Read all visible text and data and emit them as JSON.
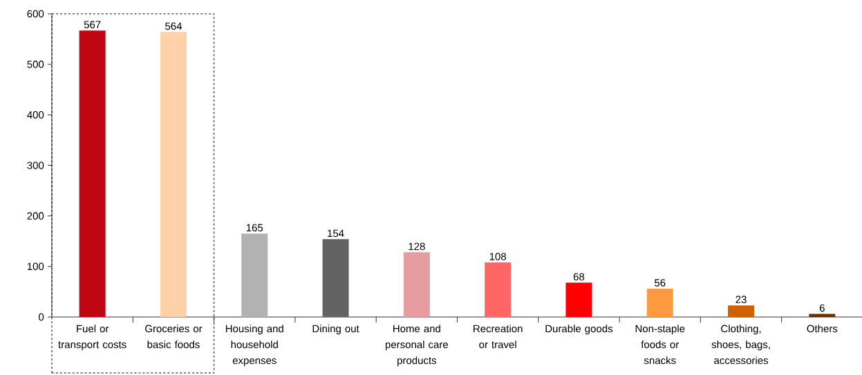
{
  "chart_data": {
    "type": "bar",
    "categories": [
      "Fuel or transport costs",
      "Groceries or basic foods",
      "Housing and household expenses",
      "Dining out",
      "Home and personal care products",
      "Recreation or travel",
      "Durable goods",
      "Non-staple foods or snacks",
      "Clothing, shoes, bags, accessories",
      "Others"
    ],
    "values": [
      567,
      564,
      165,
      154,
      128,
      108,
      68,
      56,
      23,
      6
    ],
    "colors": [
      "#be0712",
      "#ffd1a8",
      "#b2b2b2",
      "#636363",
      "#e79ca0",
      "#ff6666",
      "#ff0000",
      "#ff9a40",
      "#d06000",
      "#6b3000"
    ],
    "ylim": [
      0,
      600
    ],
    "yticks": [
      0,
      100,
      200,
      300,
      400,
      500,
      600
    ],
    "data_labels": true
  }
}
